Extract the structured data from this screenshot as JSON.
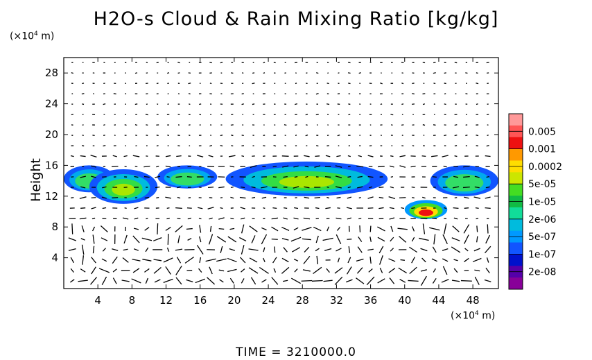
{
  "chart_data": {
    "type": "heatmap",
    "title": "H2O-s Cloud & Rain Mixing Ratio [kg/kg]",
    "ylabel": "Height",
    "xunit": "(×10⁴ m)",
    "yunit": "(×10⁴ m)",
    "time_label": "TIME = 3210000.0",
    "xlim": [
      0,
      51
    ],
    "ylim": [
      0,
      30
    ],
    "xticks": [
      4,
      8,
      12,
      16,
      20,
      24,
      28,
      32,
      36,
      40,
      44,
      48
    ],
    "yticks": [
      4,
      8,
      12,
      16,
      20,
      24,
      28
    ],
    "colorbar": {
      "labels": [
        "0.005",
        "0.001",
        "0.0002",
        "5e-05",
        "1e-05",
        "2e-06",
        "5e-07",
        "1e-07",
        "2e-08"
      ],
      "colors": [
        "#ff9999",
        "#ff5555",
        "#ee1111",
        "#ff9900",
        "#ffdd00",
        "#cce600",
        "#44dd22",
        "#11bb44",
        "#11dd99",
        "#00bbdd",
        "#0099ff",
        "#1155ff",
        "#0011cc",
        "#5500aa",
        "#880099"
      ]
    },
    "cloud_regions": [
      {
        "x": [
          0,
          6
        ],
        "y": [
          12.5,
          16
        ],
        "level": "1e-06"
      },
      {
        "x": [
          3,
          11
        ],
        "y": [
          11,
          15.5
        ],
        "level": "1e-05"
      },
      {
        "x": [
          11,
          18
        ],
        "y": [
          13,
          16
        ],
        "level": "1e-06"
      },
      {
        "x": [
          19,
          38
        ],
        "y": [
          12,
          16.5
        ],
        "level": "1e-05"
      },
      {
        "x": [
          40,
          45
        ],
        "y": [
          9,
          11.5
        ],
        "level": "0.001"
      },
      {
        "x": [
          43,
          51
        ],
        "y": [
          12,
          16
        ],
        "level": "1e-06"
      }
    ]
  }
}
